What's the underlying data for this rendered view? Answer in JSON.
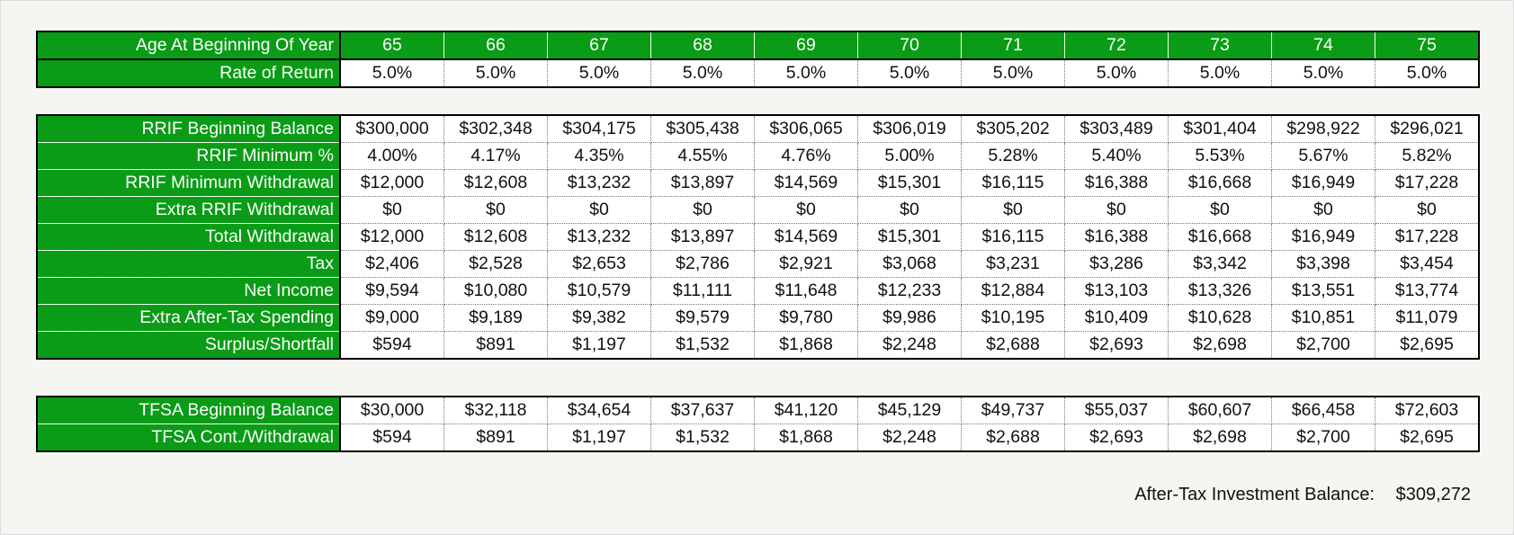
{
  "top_table": {
    "age_row": {
      "label": "Age At Beginning Of Year",
      "values": [
        "65",
        "66",
        "67",
        "68",
        "69",
        "70",
        "71",
        "72",
        "73",
        "74",
        "75"
      ]
    },
    "return_row": {
      "label": "Rate of Return",
      "values": [
        "5.0%",
        "5.0%",
        "5.0%",
        "5.0%",
        "5.0%",
        "5.0%",
        "5.0%",
        "5.0%",
        "5.0%",
        "5.0%",
        "5.0%"
      ]
    }
  },
  "rrif_table": {
    "rows": [
      {
        "label": "RRIF Beginning Balance",
        "values": [
          "$300,000",
          "$302,348",
          "$304,175",
          "$305,438",
          "$306,065",
          "$306,019",
          "$305,202",
          "$303,489",
          "$301,404",
          "$298,922",
          "$296,021"
        ]
      },
      {
        "label": "RRIF Minimum %",
        "values": [
          "4.00%",
          "4.17%",
          "4.35%",
          "4.55%",
          "4.76%",
          "5.00%",
          "5.28%",
          "5.40%",
          "5.53%",
          "5.67%",
          "5.82%"
        ]
      },
      {
        "label": "RRIF Minimum Withdrawal",
        "values": [
          "$12,000",
          "$12,608",
          "$13,232",
          "$13,897",
          "$14,569",
          "$15,301",
          "$16,115",
          "$16,388",
          "$16,668",
          "$16,949",
          "$17,228"
        ]
      },
      {
        "label": "Extra RRIF Withdrawal",
        "values": [
          "$0",
          "$0",
          "$0",
          "$0",
          "$0",
          "$0",
          "$0",
          "$0",
          "$0",
          "$0",
          "$0"
        ]
      },
      {
        "label": "Total Withdrawal",
        "values": [
          "$12,000",
          "$12,608",
          "$13,232",
          "$13,897",
          "$14,569",
          "$15,301",
          "$16,115",
          "$16,388",
          "$16,668",
          "$16,949",
          "$17,228"
        ]
      },
      {
        "label": "Tax",
        "values": [
          "$2,406",
          "$2,528",
          "$2,653",
          "$2,786",
          "$2,921",
          "$3,068",
          "$3,231",
          "$3,286",
          "$3,342",
          "$3,398",
          "$3,454"
        ]
      },
      {
        "label": "Net Income",
        "values": [
          "$9,594",
          "$10,080",
          "$10,579",
          "$11,111",
          "$11,648",
          "$12,233",
          "$12,884",
          "$13,103",
          "$13,326",
          "$13,551",
          "$13,774"
        ]
      },
      {
        "label": "Extra After-Tax Spending",
        "values": [
          "$9,000",
          "$9,189",
          "$9,382",
          "$9,579",
          "$9,780",
          "$9,986",
          "$10,195",
          "$10,409",
          "$10,628",
          "$10,851",
          "$11,079"
        ]
      },
      {
        "label": "Surplus/Shortfall",
        "values": [
          "$594",
          "$891",
          "$1,197",
          "$1,532",
          "$1,868",
          "$2,248",
          "$2,688",
          "$2,693",
          "$2,698",
          "$2,700",
          "$2,695"
        ]
      }
    ]
  },
  "tfsa_table": {
    "rows": [
      {
        "label": "TFSA Beginning Balance",
        "values": [
          "$30,000",
          "$32,118",
          "$34,654",
          "$37,637",
          "$41,120",
          "$45,129",
          "$49,737",
          "$55,037",
          "$60,607",
          "$66,458",
          "$72,603"
        ]
      },
      {
        "label": "TFSA Cont./Withdrawal",
        "values": [
          "$594",
          "$891",
          "$1,197",
          "$1,532",
          "$1,868",
          "$2,248",
          "$2,688",
          "$2,693",
          "$2,698",
          "$2,700",
          "$2,695"
        ]
      }
    ]
  },
  "summary": {
    "label": "After-Tax Investment Balance:",
    "value": "$309,272"
  },
  "colors": {
    "header_green": "#0a9c16",
    "header_text": "#ffffff",
    "background": "#f5f5f2"
  }
}
